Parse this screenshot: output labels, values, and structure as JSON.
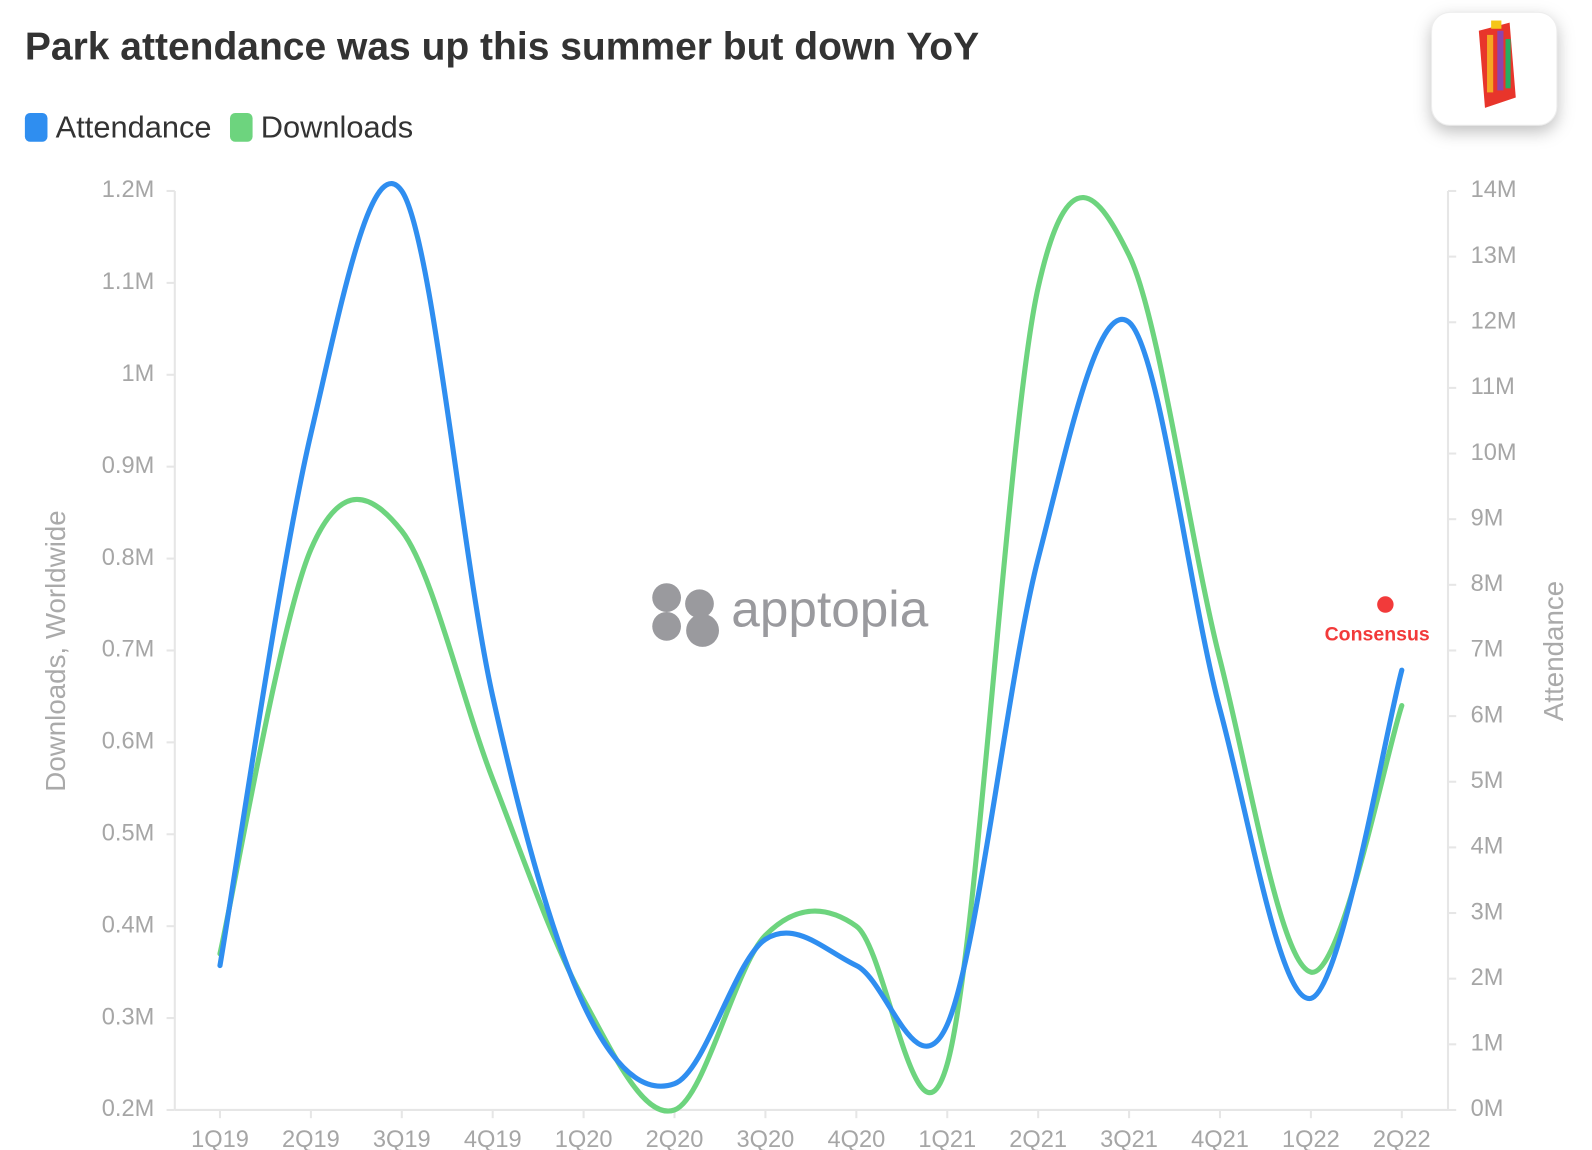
{
  "chart_data": {
    "type": "line",
    "title": "Park attendance was up this summer but down YoY",
    "categories": [
      "1Q19",
      "2Q19",
      "3Q19",
      "4Q19",
      "1Q20",
      "2Q20",
      "3Q20",
      "4Q20",
      "1Q21",
      "2Q21",
      "3Q21",
      "4Q21",
      "1Q22",
      "2Q22"
    ],
    "series": [
      {
        "name": "Attendance",
        "color": "#2f8ef0",
        "axis": "y2",
        "values": [
          2.2,
          10.3,
          14.0,
          6.3,
          1.6,
          0.4,
          2.6,
          2.2,
          1.3,
          8.4,
          12.0,
          6.1,
          1.7,
          6.7
        ]
      },
      {
        "name": "Downloads",
        "color": "#6dd47e",
        "values": [
          0.37,
          0.81,
          0.83,
          0.56,
          0.32,
          0.2,
          0.39,
          0.4,
          0.25,
          1.095,
          1.13,
          0.69,
          0.35,
          0.64
        ]
      }
    ],
    "ylabel": "Downloads, Worldwide",
    "y2label": "Attendance",
    "ylim": [
      0.2,
      1.2
    ],
    "yticks": [
      {
        "value": 0.2,
        "label": "0.2M"
      },
      {
        "value": 0.3,
        "label": "0.3M"
      },
      {
        "value": 0.4,
        "label": "0.4M"
      },
      {
        "value": 0.5,
        "label": "0.5M"
      },
      {
        "value": 0.6,
        "label": "0.6M"
      },
      {
        "value": 0.7,
        "label": "0.7M"
      },
      {
        "value": 0.8,
        "label": "0.8M"
      },
      {
        "value": 0.9,
        "label": "0.9M"
      },
      {
        "value": 1,
        "label": "1M"
      },
      {
        "value": 1.1,
        "label": "1.1M"
      },
      {
        "value": 1.2,
        "label": "1.2M"
      }
    ],
    "y2lim": [
      0,
      14
    ],
    "y2ticks": [
      {
        "value": 0,
        "label": "0M"
      },
      {
        "value": 1,
        "label": "1M"
      },
      {
        "value": 2,
        "label": "2M"
      },
      {
        "value": 3,
        "label": "3M"
      },
      {
        "value": 4,
        "label": "4M"
      },
      {
        "value": 5,
        "label": "5M"
      },
      {
        "value": 6,
        "label": "6M"
      },
      {
        "value": 7,
        "label": "7M"
      },
      {
        "value": 8,
        "label": "8M"
      },
      {
        "value": 9,
        "label": "9M"
      },
      {
        "value": 10,
        "label": "10M"
      },
      {
        "value": 11,
        "label": "11M"
      },
      {
        "value": 12,
        "label": "12M"
      },
      {
        "value": 13,
        "label": "13M"
      },
      {
        "value": 14,
        "label": "14M"
      }
    ],
    "annotation": {
      "label": "Consensus",
      "x": "2Q22",
      "value": 7.7,
      "axis": "y2",
      "color": "#f23a3a"
    },
    "watermark": "apptopia",
    "legend": "top-left"
  }
}
